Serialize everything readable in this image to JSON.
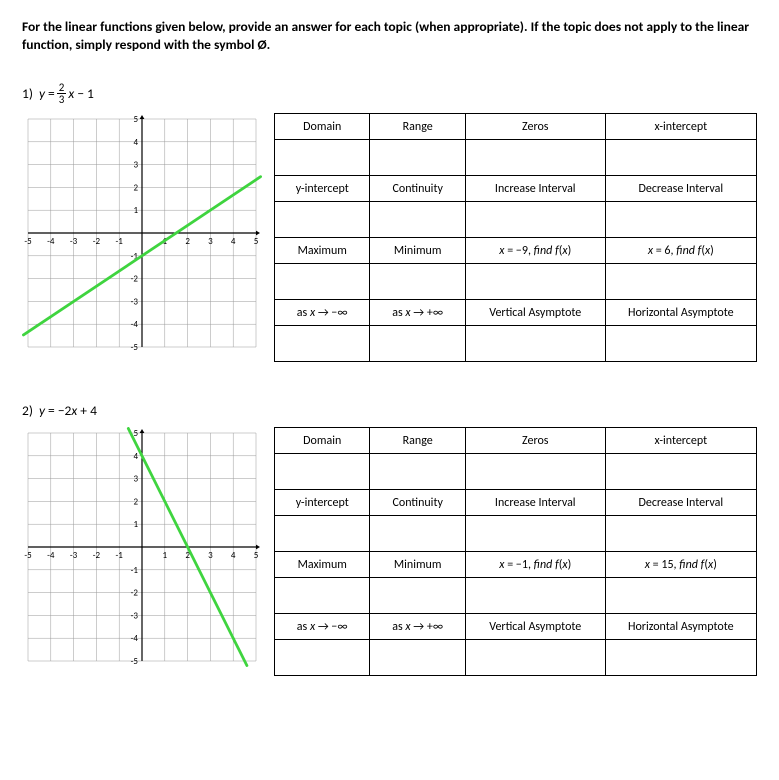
{
  "instructions": "For the linear functions given below, provide an answer for each topic (when appropriate).  If the topic does not apply to the linear function, simply respond with the symbol Ø.",
  "problems": [
    {
      "num": "1)",
      "eq_prefix": "y =",
      "frac_top": "2",
      "frac_bot": "3",
      "eq_suffix": "x − 1",
      "graph": {
        "xmin": -5,
        "xmax": 5,
        "ymin": -5,
        "ymax": 5,
        "line_x1": -5.2,
        "line_y1": -4.47,
        "line_x2": 5.2,
        "line_y2": 2.47,
        "line_color": "#3fd43f"
      },
      "headers": [
        [
          "Domain",
          "Range",
          "Zeros",
          "x-intercept"
        ],
        [
          "y-intercept",
          "Continuity",
          "Increase Interval",
          "Decrease Interval"
        ],
        [
          "Maximum",
          "Minimum",
          "x = −9, find f(x)",
          "x = 6, find f(x)"
        ],
        [
          "as x → −∞",
          "as x → +∞",
          "Vertical Asymptote",
          "Horizontal Asymptote"
        ]
      ]
    },
    {
      "num": "2)",
      "eq_plain": "y = −2x + 4",
      "graph": {
        "xmin": -5,
        "xmax": 5,
        "ymin": -5,
        "ymax": 5,
        "line_x1": -0.6,
        "line_y1": 5.2,
        "line_x2": 4.6,
        "line_y2": -5.2,
        "line_color": "#3fd43f"
      },
      "headers": [
        [
          "Domain",
          "Range",
          "Zeros",
          "x-intercept"
        ],
        [
          "y-intercept",
          "Continuity",
          "Increase Interval",
          "Decrease Interval"
        ],
        [
          "Maximum",
          "Minimum",
          "x = −1, find f(x)",
          "x = 15, find f(x)"
        ],
        [
          "as x → −∞",
          "as x → +∞",
          "Vertical Asymptote",
          "Horizontal Asymptote"
        ]
      ]
    }
  ],
  "graph_style": {
    "size": 240,
    "grid_color": "#9a9a9a",
    "axis_color": "#000000",
    "line_width": 2.8,
    "tick_font": 9,
    "bg": "#ffffff"
  }
}
